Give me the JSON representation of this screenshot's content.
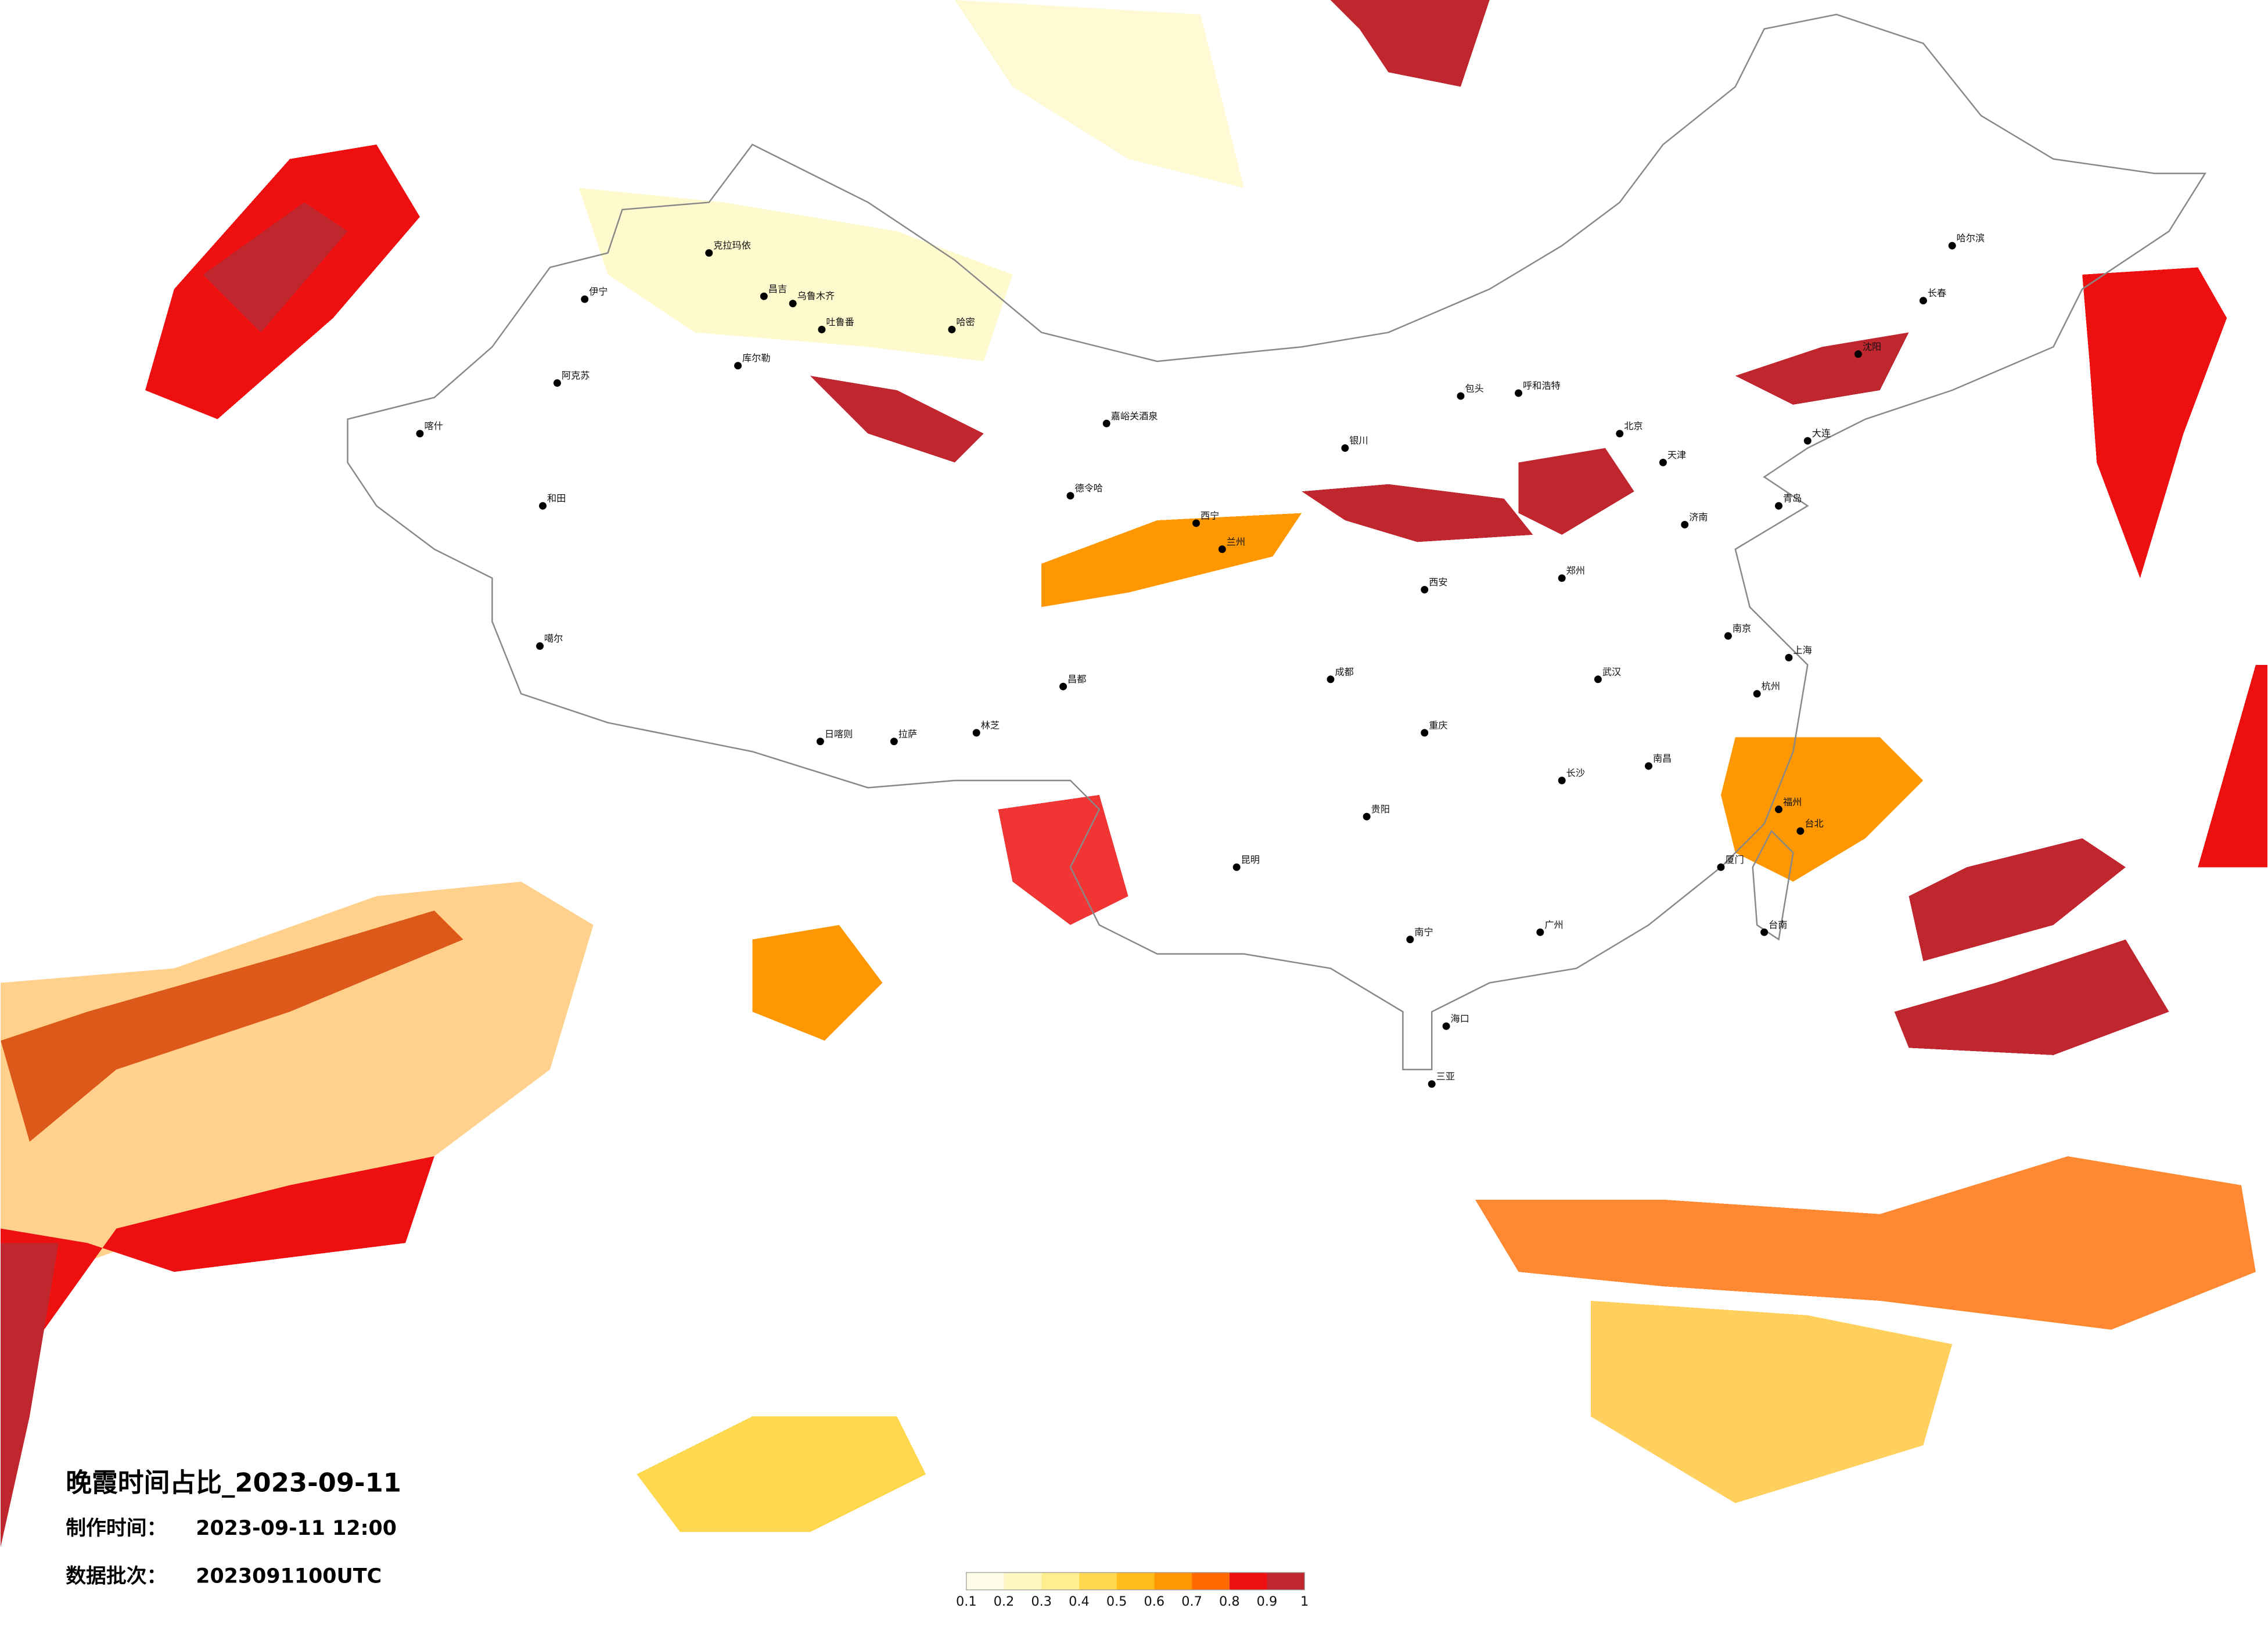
{
  "header": {
    "title": "晚霞时间占比_2023-09-11",
    "made_label": "制作时间：",
    "made_time": "2023-09-11 12:00",
    "batch_label": "数据批次：",
    "batch": "2023091100UTC"
  },
  "legend": {
    "ticks": [
      0.1,
      0.2,
      0.3,
      0.4,
      0.5,
      0.6,
      0.7,
      0.8,
      0.9,
      1
    ],
    "colors": [
      "#fffce8",
      "#fff7c2",
      "#ffee8e",
      "#ffd84f",
      "#ffbc1a",
      "#ff9800",
      "#ff6a00",
      "#ee1010",
      "#c0262e"
    ]
  },
  "cities": [
    "伊宁",
    "克拉玛依",
    "昌吉",
    "乌鲁木齐",
    "吐鲁番",
    "哈密",
    "库尔勒",
    "阿克苏",
    "和田",
    "喀什",
    "嘉峪关酒泉",
    "德令哈",
    "噶尔",
    "日喀则",
    "拉萨",
    "林芝",
    "昌都",
    "兰州",
    "西宁",
    "呼和浩特",
    "包头",
    "银川",
    "北京",
    "天津",
    "哈尔滨",
    "长春",
    "沈阳",
    "大连",
    "济南",
    "青岛",
    "郑州",
    "西安",
    "成都",
    "重庆",
    "武汉",
    "南京",
    "上海",
    "杭州",
    "福州",
    "台北",
    "南昌",
    "长沙",
    "贵阳",
    "昆明",
    "南宁",
    "广州",
    "海口",
    "三亚",
    "厦门",
    "台南"
  ]
}
